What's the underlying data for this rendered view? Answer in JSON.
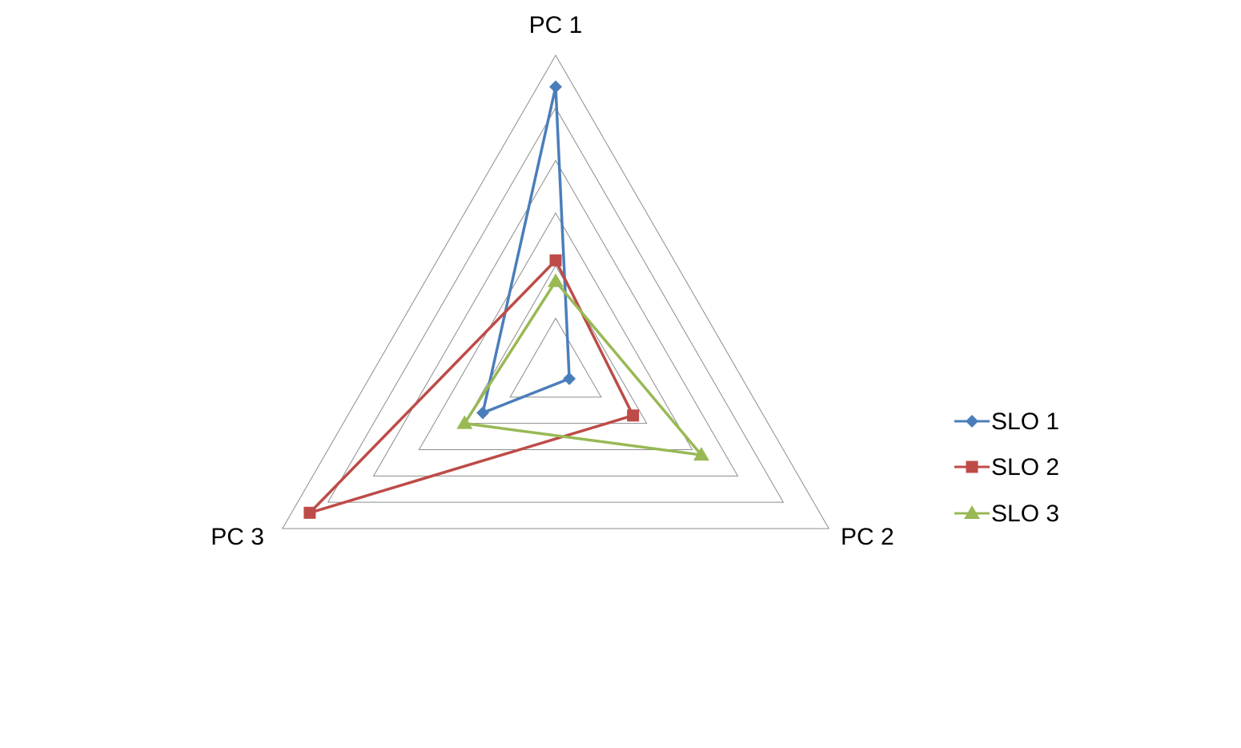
{
  "chart_data": {
    "type": "radar",
    "title": "",
    "axes": [
      "PC 1",
      "PC 2",
      "PC 3"
    ],
    "rlim": [
      0,
      6
    ],
    "grid_rings": 6,
    "grid": true,
    "legend_position": "right",
    "series": [
      {
        "name": "SLO 1",
        "values": [
          5.4,
          0.3,
          1.6
        ],
        "color": "#4a7ebb",
        "marker": "diamond"
      },
      {
        "name": "SLO 2",
        "values": [
          2.1,
          1.7,
          5.4
        ],
        "color": "#be4b48",
        "marker": "square"
      },
      {
        "name": "SLO 3",
        "values": [
          1.7,
          3.2,
          2.0
        ],
        "color": "#98b954",
        "marker": "triangle"
      }
    ]
  }
}
